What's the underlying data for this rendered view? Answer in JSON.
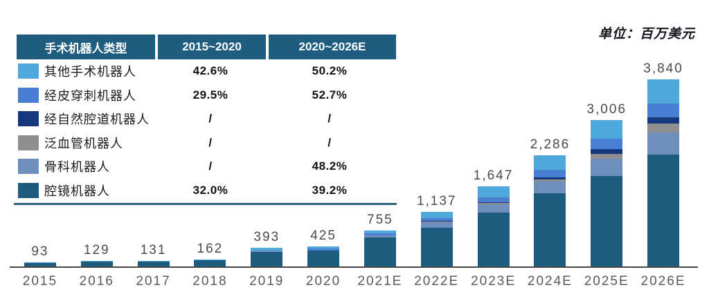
{
  "unit_label": "单位：百万美元",
  "table": {
    "header": [
      "手术机器人类型",
      "2015~2020",
      "2020~2026E"
    ],
    "rows": [
      {
        "label": "其他手术机器人",
        "color": "#4FA8DC",
        "cagr_2015_2020": "42.6%",
        "cagr_2020_2026": "50.2%"
      },
      {
        "label": "经皮穿刺机器人",
        "color": "#4A7ED3",
        "cagr_2015_2020": "29.5%",
        "cagr_2020_2026": "52.7%"
      },
      {
        "label": "经自然腔道机器人",
        "color": "#15377E",
        "cagr_2015_2020": "/",
        "cagr_2020_2026": "/"
      },
      {
        "label": "泛血管机器人",
        "color": "#8F8F8F",
        "cagr_2015_2020": "/",
        "cagr_2020_2026": "/"
      },
      {
        "label": "骨科机器人",
        "color": "#6E8EBE",
        "cagr_2015_2020": "/",
        "cagr_2020_2026": "48.2%"
      },
      {
        "label": "腔镜机器人",
        "color": "#1E5C7F",
        "cagr_2015_2020": "32.0%",
        "cagr_2020_2026": "39.2%"
      }
    ]
  },
  "chart_data": {
    "type": "bar",
    "stacked": true,
    "unit": "百万美元",
    "categories": [
      "2015",
      "2016",
      "2017",
      "2018",
      "2019",
      "2020",
      "2021E",
      "2022E",
      "2023E",
      "2024E",
      "2025E",
      "2026E"
    ],
    "totals": [
      93,
      129,
      131,
      162,
      393,
      425,
      755,
      1137,
      1647,
      2286,
      3006,
      3840
    ],
    "total_labels": [
      "93",
      "129",
      "131",
      "162",
      "393",
      "425",
      "755",
      "1,137",
      "1,647",
      "2,286",
      "3,006",
      "3,840"
    ],
    "series": [
      {
        "name": "腔镜机器人",
        "color": "#1E5C7F",
        "values": [
          86,
          115,
          117,
          141,
          309,
          341,
          610,
          800,
          1110,
          1510,
          1870,
          2300
        ]
      },
      {
        "name": "骨科机器人",
        "color": "#6E8EBE",
        "values": [
          0,
          0,
          0,
          0,
          28,
          0,
          45,
          112,
          182,
          235,
          350,
          450
        ]
      },
      {
        "name": "泛血管机器人",
        "color": "#8F8F8F",
        "values": [
          0,
          0,
          0,
          0,
          0,
          0,
          0,
          14,
          21,
          55,
          95,
          185
        ]
      },
      {
        "name": "经自然腔道机器人",
        "color": "#15377E",
        "values": [
          0,
          0,
          0,
          0,
          0,
          0,
          0,
          14,
          21,
          40,
          95,
          125
        ]
      },
      {
        "name": "经皮穿刺机器人",
        "color": "#4A7ED3",
        "values": [
          0,
          0,
          0,
          0,
          0,
          42,
          30,
          56,
          99,
          150,
          210,
          280
        ]
      },
      {
        "name": "其他手术机器人",
        "color": "#4FA8DC",
        "values": [
          7,
          14,
          14,
          21,
          56,
          42,
          70,
          141,
          214,
          296,
          386,
          500
        ]
      }
    ],
    "ylim": [
      0,
      3840
    ],
    "grid": false,
    "legend_position": "top-left-table"
  }
}
